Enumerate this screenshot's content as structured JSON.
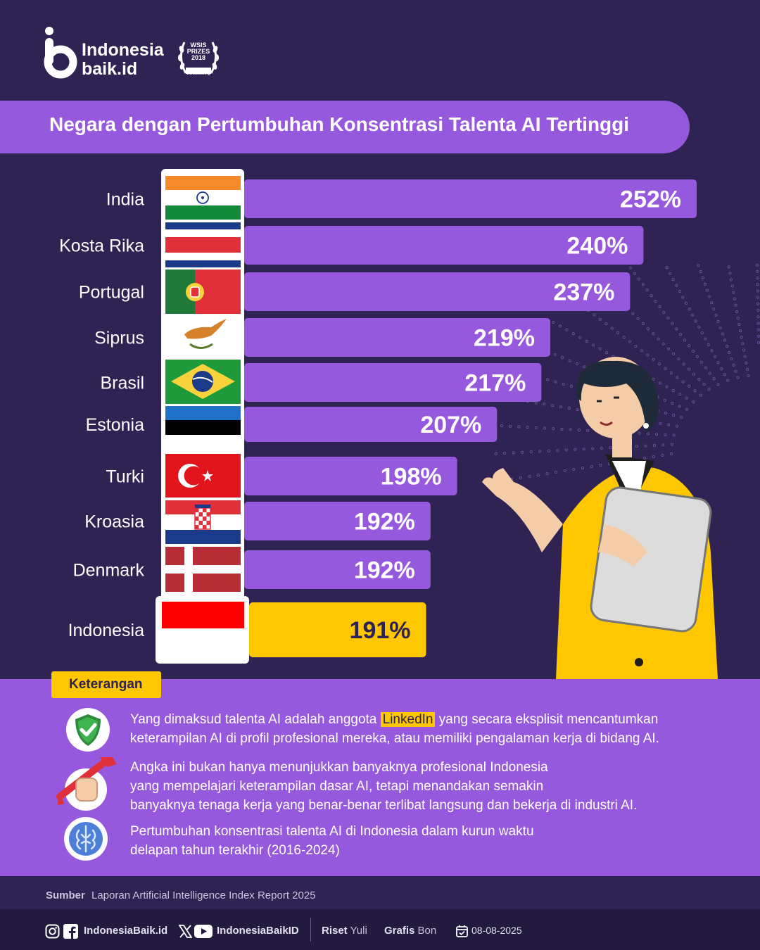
{
  "brand": {
    "line1": "Indonesia",
    "line2": "baik.id"
  },
  "award": {
    "line1": "WSIS",
    "line2": "PRIZES",
    "line3": "2018",
    "line4": "WINNER",
    "line5": "www.wsis.org"
  },
  "title": "Negara dengan Pertumbuhan Konsentrasi Talenta AI Tertinggi",
  "chart_data": {
    "type": "bar",
    "orientation": "horizontal",
    "title": "Negara dengan Pertumbuhan Konsentrasi Talenta AI Tertinggi",
    "categories": [
      "India",
      "Kosta Rika",
      "Portugal",
      "Siprus",
      "Brasil",
      "Estonia",
      "Turki",
      "Kroasia",
      "Denmark",
      "Indonesia"
    ],
    "values": [
      252,
      240,
      237,
      219,
      217,
      207,
      198,
      192,
      192,
      191
    ],
    "labels": [
      "252%",
      "240%",
      "237%",
      "219%",
      "217%",
      "207%",
      "198%",
      "192%",
      "192%",
      "191%"
    ],
    "unit": "%",
    "highlight": "Indonesia",
    "bar_color": "#9658dc",
    "highlight_color": "#ffc700"
  },
  "legend": {
    "badge": "Keterangan",
    "notes": [
      {
        "lines": [
          "Yang dimaksud talenta AI adalah anggota",
          "LinkedIn",
          "yang secara eksplisit mencantumkan",
          "keterampilan AI di profil profesional mereka, atau memiliki pengalaman kerja di bidang AI."
        ],
        "icon": "shield-check-icon"
      },
      {
        "lines": [
          "Angka ini bukan hanya menunjukkan banyaknya profesional Indonesia",
          "yang mempelajari keterampilan dasar AI, tetapi menandakan semakin",
          "banyaknya tenaga kerja yang benar-benar terlibat langsung dan bekerja di industri AI."
        ],
        "icon": "wrench-fist-icon"
      },
      {
        "lines": [
          "Pertumbuhan konsentrasi talenta AI di Indonesia dalam kurun waktu",
          "delapan tahun terakhir (2016-2024)"
        ],
        "icon": "brain-icon"
      }
    ]
  },
  "source": {
    "label": "Sumber",
    "value": "Laporan Artificial Intelligence Index Report 2025"
  },
  "footer": {
    "handle1": "IndonesiaBaik.id",
    "handle2": "IndonesiaBaikID",
    "riset_label": "Riset",
    "riset_name": "Yuli",
    "grafis_label": "Grafis",
    "grafis_name": "Bon",
    "date": "08-08-2025"
  },
  "colors": {
    "background": "#2e2352",
    "purple": "#9658dc",
    "yellow": "#ffc700",
    "footer": "#221a3f"
  }
}
